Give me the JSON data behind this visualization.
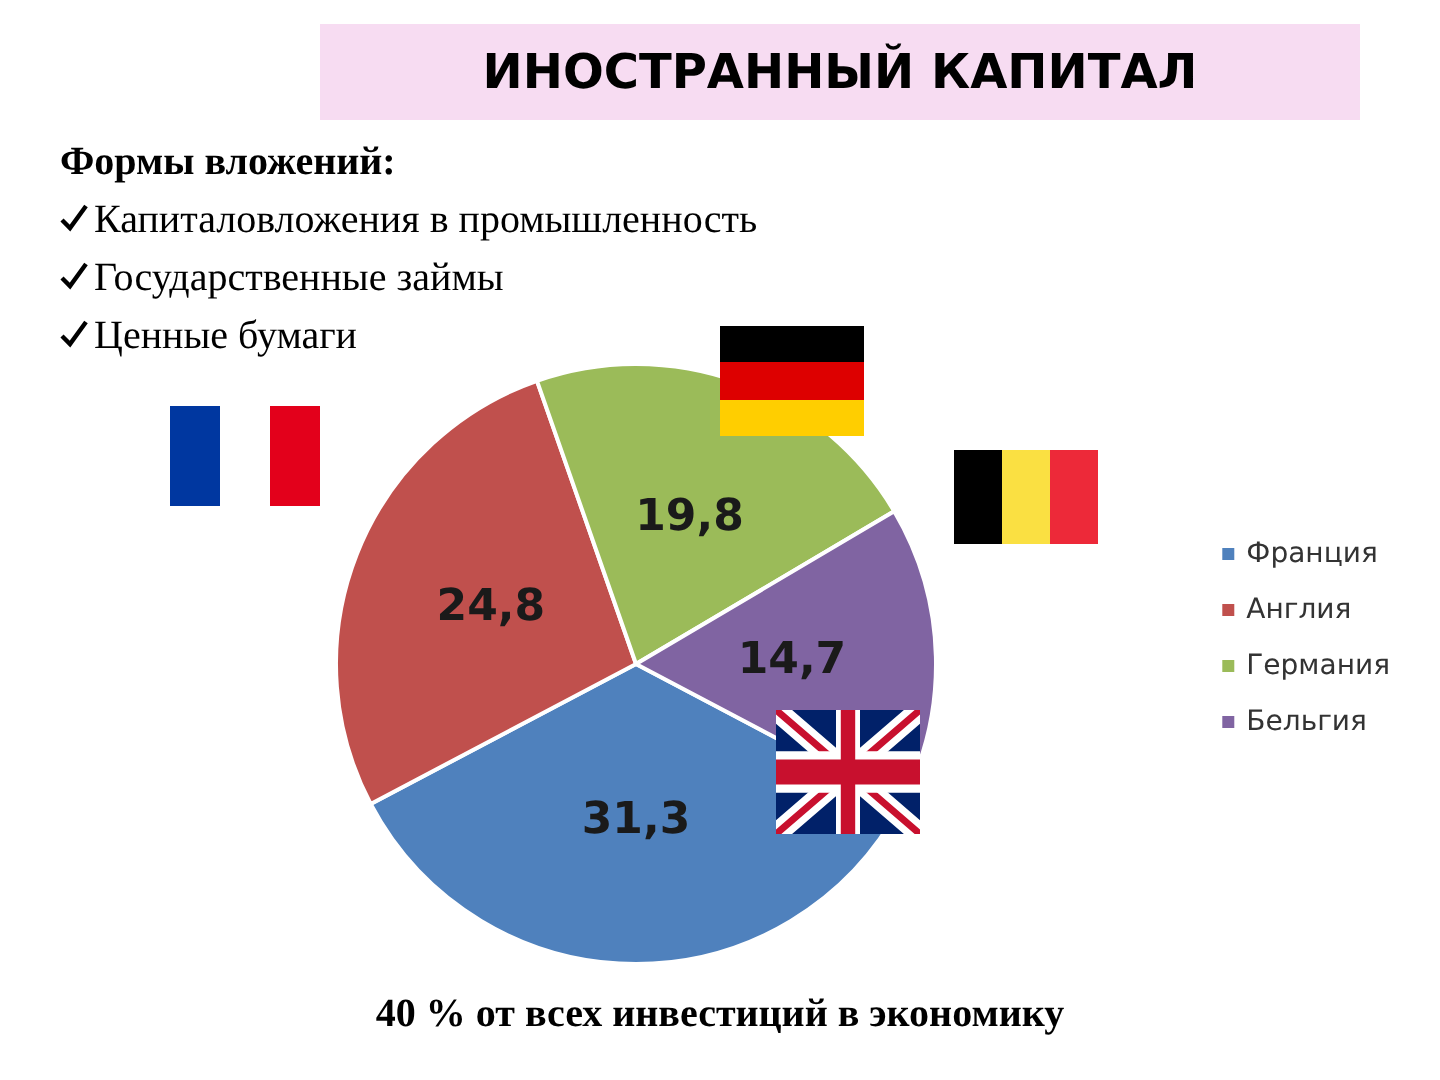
{
  "chart_data": {
    "type": "pie",
    "title": "ИНОСТРАННЫЙ КАПИТАЛ",
    "categories": [
      "Франция",
      "Англия",
      "Германия",
      "Бельгия"
    ],
    "values": [
      31.3,
      24.8,
      19.8,
      14.7
    ],
    "colors": [
      "#4f81bd",
      "#c0504d",
      "#9bbb59",
      "#8064a2"
    ],
    "value_labels": [
      "31,3",
      "24,8",
      "19,8",
      "14,7"
    ],
    "legend": "right",
    "annotations": [
      "Формы вложений:",
      "Капиталовложения в промышленность",
      "Государственные займы",
      "Ценные бумаги",
      "40 % от всех инвестиций в экономику"
    ]
  }
}
